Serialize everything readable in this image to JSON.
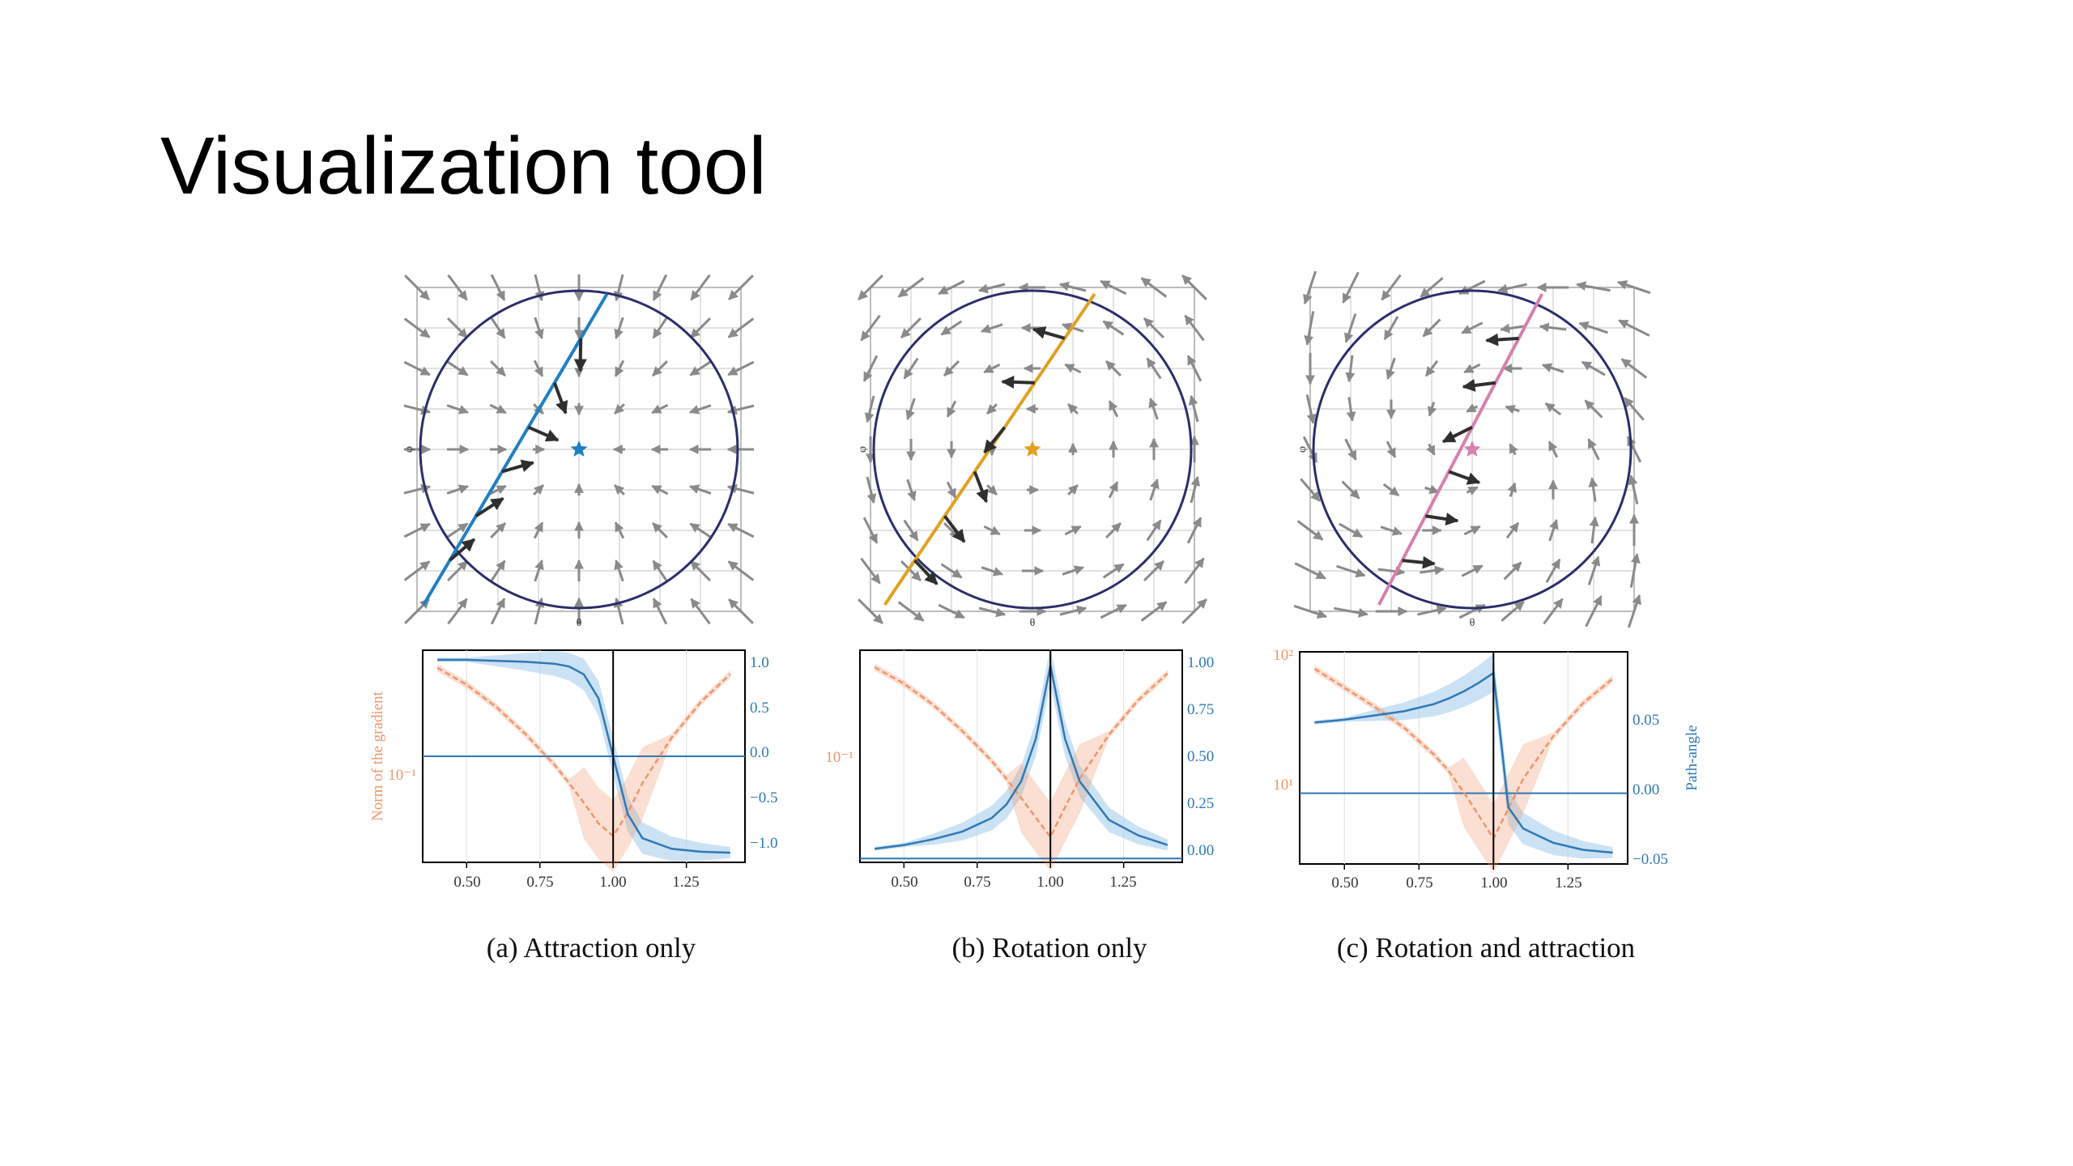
{
  "slide": {
    "title": "Visualization tool"
  },
  "colors": {
    "circle": "#2b2e6b",
    "grid": "#cfcfcf",
    "field_arrow": "#8a8a8a",
    "traj_arrow": "#2f2f2f",
    "norm": "#f0956a",
    "path_angle": "#2f78b5",
    "band": "#a9cfee"
  },
  "panels": [
    {
      "caption": "(a) Attraction only",
      "traj_color": "#1f7fc4",
      "field": {
        "x_label": "θ",
        "y_label": "φ"
      },
      "chart_data": {
        "type": "line",
        "x": [
          0.4,
          0.5,
          0.6,
          0.7,
          0.8,
          0.85,
          0.9,
          0.95,
          1.0,
          1.05,
          1.1,
          1.2,
          1.3,
          1.4
        ],
        "xticks": [
          "0.50",
          "0.75",
          "1.00",
          "1.25"
        ],
        "left_axis": {
          "label": "Norm of the gradient",
          "scale": "log",
          "tick_label": "10⁻¹",
          "tick_value": 0.1
        },
        "right_axis": {
          "ticks": [
            "1.0",
            "0.5",
            "0.0",
            "−0.5",
            "−1.0"
          ]
        },
        "series": [
          {
            "axis": "left",
            "values": [
              0.5,
              0.4,
              0.3,
              0.21,
              0.14,
              0.11,
              0.085,
              0.065,
              0.055,
              0.075,
              0.11,
              0.2,
              0.32,
              0.46
            ]
          },
          {
            "axis": "right",
            "values": [
              1.0,
              1.0,
              0.99,
              0.98,
              0.96,
              0.93,
              0.85,
              0.6,
              0.0,
              -0.6,
              -0.85,
              -0.96,
              -0.99,
              -1.0
            ]
          }
        ],
        "vline_x": 1.0,
        "hline_right": 0.0
      }
    },
    {
      "caption": "(b) Rotation only",
      "traj_color": "#e0a021",
      "field": {
        "x_label": "θ",
        "y_label": "φ"
      },
      "chart_data": {
        "type": "line",
        "x": [
          0.4,
          0.5,
          0.6,
          0.7,
          0.8,
          0.85,
          0.9,
          0.95,
          1.0,
          1.05,
          1.1,
          1.2,
          1.3,
          1.4
        ],
        "xticks": [
          "0.50",
          "0.75",
          "1.00",
          "1.25"
        ],
        "left_axis": {
          "label": "",
          "scale": "log",
          "tick_label": "10⁻¹",
          "tick_value": 0.1
        },
        "right_axis": {
          "ticks": [
            "1.00",
            "0.75",
            "0.50",
            "0.25",
            "0.00"
          ]
        },
        "series": [
          {
            "axis": "left",
            "values": [
              0.5,
              0.4,
              0.3,
              0.21,
              0.14,
              0.11,
              0.085,
              0.065,
              0.05,
              0.075,
              0.11,
              0.2,
              0.32,
              0.46
            ]
          },
          {
            "axis": "right",
            "values": [
              0.05,
              0.07,
              0.1,
              0.14,
              0.21,
              0.28,
              0.4,
              0.62,
              1.0,
              0.62,
              0.4,
              0.2,
              0.12,
              0.07
            ]
          }
        ],
        "vline_x": 1.0,
        "hline_right": 0.0
      }
    },
    {
      "caption": "(c) Rotation and attraction",
      "traj_color": "#d77fb0",
      "field": {
        "x_label": "θ",
        "y_label": "φ"
      },
      "chart_data": {
        "type": "line",
        "x": [
          0.4,
          0.5,
          0.6,
          0.7,
          0.8,
          0.85,
          0.9,
          0.95,
          1.0,
          1.05,
          1.1,
          1.2,
          1.3,
          1.4
        ],
        "xticks": [
          "0.50",
          "0.75",
          "1.00",
          "1.25"
        ],
        "left_axis": {
          "label": "",
          "scale": "log",
          "ticks": [
            "10²",
            "10¹"
          ],
          "tick_values": [
            100,
            10
          ]
        },
        "right_axis": {
          "label": "Path-angle",
          "ticks": [
            "0.05",
            "0.00",
            "−0.05"
          ]
        },
        "series": [
          {
            "axis": "left",
            "values": [
              80,
              62,
              48,
              36,
              25,
              20,
              15,
              11,
              8,
              12,
              18,
              32,
              50,
              70
            ]
          },
          {
            "axis": "right",
            "values": [
              0.05,
              0.052,
              0.055,
              0.058,
              0.063,
              0.067,
              0.072,
              0.078,
              0.085,
              -0.01,
              -0.025,
              -0.035,
              -0.04,
              -0.042
            ]
          }
        ],
        "vline_x": 1.0,
        "hline_right": 0.0
      }
    }
  ]
}
